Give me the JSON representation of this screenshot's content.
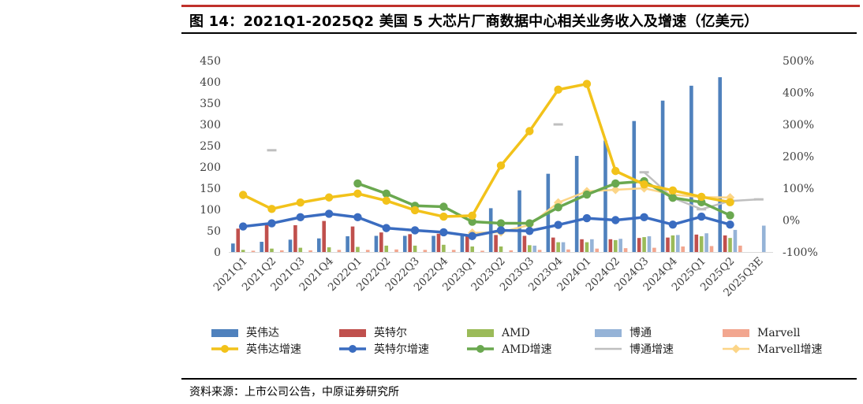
{
  "title": "图 14：2021Q1-2025Q2 美国 5 大芯片厂商数据中心相关业务收入及增速（亿美元）",
  "source": "资料来源：上市公司公告，中原证券研究所",
  "chart_data": {
    "type": "bar",
    "categories": [
      "2021Q1",
      "2021Q2",
      "2021Q3",
      "2021Q4",
      "2022Q1",
      "2022Q2",
      "2022Q3",
      "2022Q4",
      "2023Q1",
      "2023Q2",
      "2023Q3",
      "2023Q4",
      "2024Q1",
      "2024Q2",
      "2024Q3",
      "2024Q4",
      "2025Q1",
      "2025Q2",
      "2025Q3E"
    ],
    "y_left": {
      "range": [
        0,
        450
      ],
      "ticks": [
        0,
        50,
        100,
        150,
        200,
        250,
        300,
        350,
        400,
        450
      ],
      "tick_labels": [
        "0",
        "50",
        "100",
        "150",
        "200",
        "250",
        "300",
        "350",
        "400",
        "450"
      ]
    },
    "y_right": {
      "range": [
        -100,
        500
      ],
      "ticks": [
        -100,
        0,
        100,
        200,
        300,
        400,
        500
      ],
      "tick_labels": [
        "-100%",
        "0%",
        "100%",
        "200%",
        "300%",
        "400%",
        "500%"
      ]
    },
    "bar_series": [
      {
        "name": "英伟达",
        "color": "#4f81bd",
        "values": [
          20,
          24,
          29,
          32,
          37,
          38,
          38,
          38,
          43,
          103,
          145,
          184,
          226,
          262,
          308,
          356,
          391,
          411,
          null
        ]
      },
      {
        "name": "英特尔",
        "color": "#c0504d",
        "values": [
          55,
          65,
          63,
          73,
          60,
          46,
          42,
          43,
          37,
          40,
          38,
          34,
          30,
          30,
          33,
          34,
          41,
          39,
          null
        ]
      },
      {
        "name": "AMD",
        "color": "#9bbb59",
        "values": [
          5,
          8,
          10,
          11,
          12,
          15,
          15,
          17,
          13,
          13,
          16,
          23,
          23,
          28,
          35,
          39,
          37,
          33,
          null
        ]
      },
      {
        "name": "博通",
        "color": "#95b3d7",
        "values": [
          null,
          null,
          null,
          null,
          null,
          null,
          null,
          null,
          null,
          null,
          15,
          23,
          30,
          31,
          37,
          40,
          44,
          52,
          62
        ]
      },
      {
        "name": "Marvell",
        "color": "#f2a68f",
        "values": [
          3,
          4,
          4,
          5,
          5,
          6,
          5,
          5,
          3,
          4,
          5,
          6,
          8,
          9,
          10,
          13,
          14,
          15,
          null
        ]
      }
    ],
    "line_series": [
      {
        "name": "英伟达增速",
        "color": "#f2c21a",
        "values": [
          79,
          35,
          55,
          71,
          83,
          61,
          31,
          11,
          14,
          171,
          279,
          409,
          427,
          154,
          112,
          93,
          73,
          56,
          null
        ]
      },
      {
        "name": "英特尔增速",
        "color": "#3a6cc0",
        "values": [
          -20,
          -10,
          9,
          20,
          9,
          -25,
          -32,
          -38,
          -50,
          -32,
          -34,
          -15,
          6,
          0,
          9,
          -14,
          11,
          -14,
          null
        ]
      },
      {
        "name": "AMD增速",
        "color": "#6aa84f",
        "values": [
          null,
          null,
          null,
          null,
          115,
          83,
          45,
          42,
          -5,
          -10,
          -10,
          40,
          80,
          115,
          122,
          70,
          56,
          15,
          null
        ]
      },
      {
        "name": "博通增速",
        "color": "#bfbfbf",
        "values": [
          null,
          219,
          null,
          null,
          null,
          null,
          null,
          null,
          null,
          null,
          null,
          300,
          null,
          null,
          150,
          70,
          34,
          60,
          65
        ]
      },
      {
        "name": "Marvell增速",
        "color": "#fcd587",
        "values": [
          null,
          null,
          null,
          null,
          null,
          null,
          null,
          null,
          -40,
          -38,
          -15,
          55,
          90,
          95,
          100,
          80,
          72,
          71,
          null
        ]
      }
    ],
    "grid": false,
    "legend": "bottom"
  }
}
